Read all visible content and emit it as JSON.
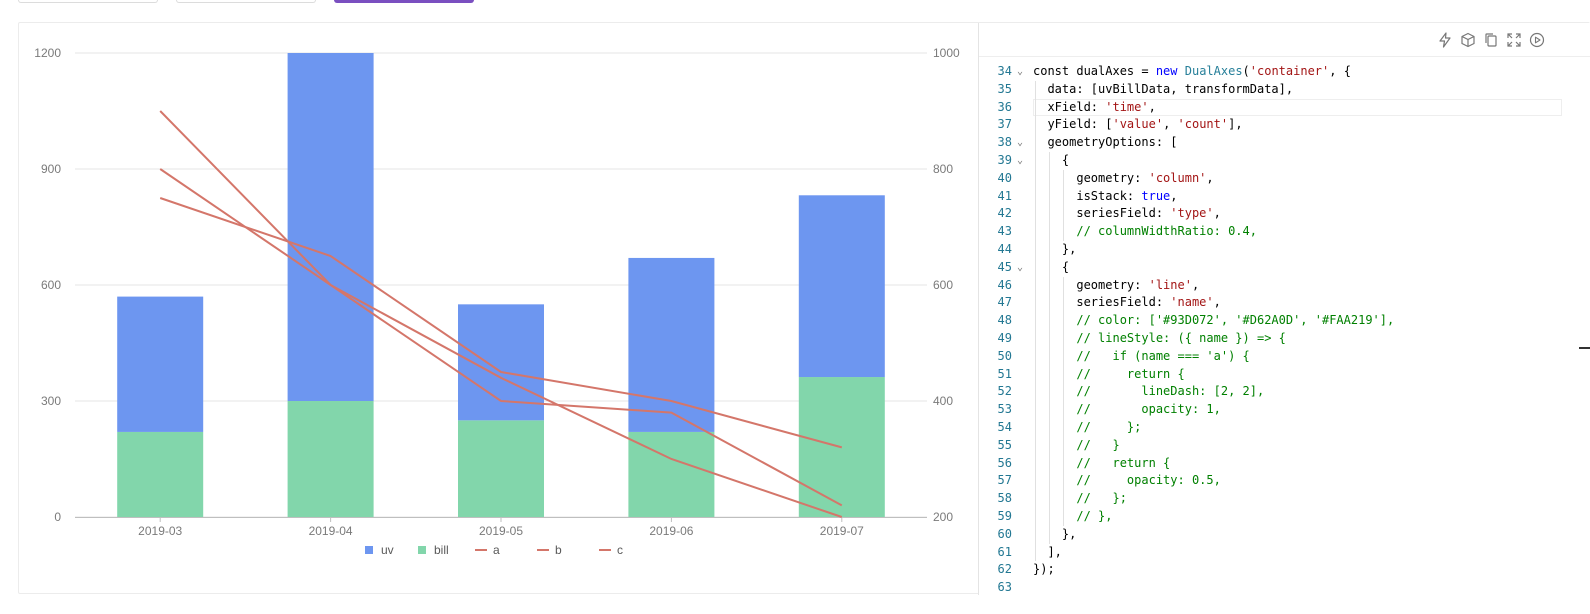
{
  "colors": {
    "uv": "#6d96f0",
    "bill": "#82d6ab",
    "line": "#d4766a",
    "grid": "#e6e6e6",
    "axis_text": "#7a7a7a",
    "accent": "#7a4fc0"
  },
  "chart_data": {
    "type": "bar",
    "categories": [
      "2019-03",
      "2019-04",
      "2019-05",
      "2019-06",
      "2019-07"
    ],
    "series": [
      {
        "name": "uv",
        "type": "stacked-bar",
        "axis": "left",
        "values": [
          350,
          900,
          300,
          450,
          470
        ]
      },
      {
        "name": "bill",
        "type": "stacked-bar",
        "axis": "left",
        "values": [
          220,
          300,
          250,
          220,
          362
        ]
      },
      {
        "name": "a",
        "type": "line",
        "axis": "right",
        "values": [
          900,
          600,
          400,
          380,
          220
        ]
      },
      {
        "name": "b",
        "type": "line",
        "axis": "right",
        "values": [
          750,
          650,
          450,
          400,
          320
        ]
      },
      {
        "name": "c",
        "type": "line",
        "axis": "right",
        "values": [
          800,
          600,
          440,
          300,
          200
        ]
      }
    ],
    "y_left": {
      "range": [
        0,
        1200
      ],
      "ticks": [
        "0",
        "300",
        "600",
        "900",
        "1200"
      ]
    },
    "y_right": {
      "range": [
        200,
        1000
      ],
      "ticks": [
        "200",
        "400",
        "600",
        "800",
        "1000"
      ]
    },
    "legend": {
      "placement": "bottom-center",
      "items": [
        "uv",
        "bill",
        "a",
        "b",
        "c"
      ]
    },
    "grid": true
  },
  "editor": {
    "toolbar_icons": [
      "lightning-icon",
      "box-icon",
      "copy-icon",
      "fullscreen-icon",
      "play-icon"
    ],
    "lines": [
      {
        "n": "34",
        "fold": "⌄",
        "tokens": [
          [
            "",
            "const dualAxes = "
          ],
          [
            "kw",
            "new"
          ],
          [
            "",
            " "
          ],
          [
            "cls",
            "DualAxes"
          ],
          [
            "",
            "("
          ],
          [
            "str",
            "'container'"
          ],
          [
            "",
            ", {"
          ]
        ]
      },
      {
        "n": "35",
        "fold": "",
        "tokens": [
          [
            "",
            "  data: [uvBillData, transformData],"
          ]
        ]
      },
      {
        "n": "36",
        "fold": "",
        "tokens": [
          [
            "",
            "  xField: "
          ],
          [
            "str",
            "'time'"
          ],
          [
            "",
            ","
          ]
        ]
      },
      {
        "n": "37",
        "fold": "",
        "tokens": [
          [
            "",
            "  yField: ["
          ],
          [
            "str",
            "'value'"
          ],
          [
            "",
            ", "
          ],
          [
            "str",
            "'count'"
          ],
          [
            "",
            "],"
          ]
        ]
      },
      {
        "n": "38",
        "fold": "⌄",
        "tokens": [
          [
            "",
            "  geometryOptions: ["
          ]
        ]
      },
      {
        "n": "39",
        "fold": "⌄",
        "tokens": [
          [
            "",
            "    {"
          ]
        ]
      },
      {
        "n": "40",
        "fold": "",
        "tokens": [
          [
            "",
            "      geometry: "
          ],
          [
            "str",
            "'column'"
          ],
          [
            "",
            ","
          ]
        ]
      },
      {
        "n": "41",
        "fold": "",
        "tokens": [
          [
            "",
            "      isStack: "
          ],
          [
            "kw",
            "true"
          ],
          [
            "",
            ","
          ]
        ]
      },
      {
        "n": "42",
        "fold": "",
        "tokens": [
          [
            "",
            "      seriesField: "
          ],
          [
            "str",
            "'type'"
          ],
          [
            "",
            ","
          ]
        ]
      },
      {
        "n": "43",
        "fold": "",
        "tokens": [
          [
            "cm",
            "      // columnWidthRatio: 0.4,"
          ]
        ]
      },
      {
        "n": "44",
        "fold": "",
        "tokens": [
          [
            "",
            "    },"
          ]
        ]
      },
      {
        "n": "45",
        "fold": "⌄",
        "tokens": [
          [
            "",
            "    {"
          ]
        ]
      },
      {
        "n": "46",
        "fold": "",
        "tokens": [
          [
            "",
            "      geometry: "
          ],
          [
            "str",
            "'line'"
          ],
          [
            "",
            ","
          ]
        ]
      },
      {
        "n": "47",
        "fold": "",
        "tokens": [
          [
            "",
            "      seriesField: "
          ],
          [
            "str",
            "'name'"
          ],
          [
            "",
            ","
          ]
        ]
      },
      {
        "n": "48",
        "fold": "",
        "tokens": [
          [
            "cm",
            "      // color: ['#93D072', '#D62A0D', '#FAA219'],"
          ]
        ]
      },
      {
        "n": "49",
        "fold": "",
        "tokens": [
          [
            "cm",
            "      // lineStyle: ({ name }) => {"
          ]
        ]
      },
      {
        "n": "50",
        "fold": "",
        "tokens": [
          [
            "cm",
            "      //   if (name === 'a') {"
          ]
        ]
      },
      {
        "n": "51",
        "fold": "",
        "tokens": [
          [
            "cm",
            "      //     return {"
          ]
        ]
      },
      {
        "n": "52",
        "fold": "",
        "tokens": [
          [
            "cm",
            "      //       lineDash: [2, 2],"
          ]
        ]
      },
      {
        "n": "53",
        "fold": "",
        "tokens": [
          [
            "cm",
            "      //       opacity: 1,"
          ]
        ]
      },
      {
        "n": "54",
        "fold": "",
        "tokens": [
          [
            "cm",
            "      //     };"
          ]
        ]
      },
      {
        "n": "55",
        "fold": "",
        "tokens": [
          [
            "cm",
            "      //   }"
          ]
        ]
      },
      {
        "n": "56",
        "fold": "",
        "tokens": [
          [
            "cm",
            "      //   return {"
          ]
        ]
      },
      {
        "n": "57",
        "fold": "",
        "tokens": [
          [
            "cm",
            "      //     opacity: 0.5,"
          ]
        ]
      },
      {
        "n": "58",
        "fold": "",
        "tokens": [
          [
            "cm",
            "      //   };"
          ]
        ]
      },
      {
        "n": "59",
        "fold": "",
        "tokens": [
          [
            "cm",
            "      // },"
          ]
        ]
      },
      {
        "n": "60",
        "fold": "",
        "tokens": [
          [
            "",
            "    },"
          ]
        ]
      },
      {
        "n": "61",
        "fold": "",
        "tokens": [
          [
            "",
            "  ],"
          ]
        ]
      },
      {
        "n": "62",
        "fold": "",
        "tokens": [
          [
            "",
            "});"
          ]
        ]
      },
      {
        "n": "63",
        "fold": "",
        "tokens": [
          [
            "",
            ""
          ]
        ]
      }
    ]
  }
}
